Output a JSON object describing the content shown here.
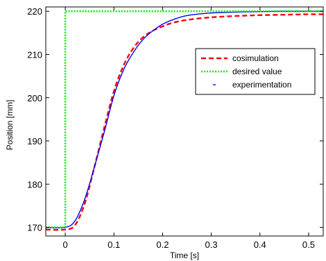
{
  "chart_data": {
    "type": "line",
    "title": "",
    "xlabel": "Time [s]",
    "ylabel": "Position [mm]",
    "xlim": [
      -0.04,
      0.53
    ],
    "ylim": [
      168,
      221
    ],
    "xticks": [
      0,
      0.1,
      0.2,
      0.3,
      0.4,
      0.5
    ],
    "xtick_labels": [
      "0",
      "0.1",
      "0.2",
      "0.3",
      "0.4",
      "0.5"
    ],
    "yticks": [
      170,
      180,
      190,
      200,
      210,
      220
    ],
    "ytick_labels": [
      "170",
      "180",
      "190",
      "200",
      "210",
      "220"
    ],
    "grid": false,
    "legend_position": "upper-right",
    "series": [
      {
        "name": "cosimulation",
        "color": "#ff0000",
        "style": "dashed",
        "x": [
          -0.04,
          0,
          0.02,
          0.04,
          0.06,
          0.08,
          0.1,
          0.12,
          0.14,
          0.16,
          0.18,
          0.2,
          0.22,
          0.25,
          0.3,
          0.35,
          0.4,
          0.45,
          0.5,
          0.53
        ],
        "y": [
          169.5,
          169.5,
          170.5,
          175.5,
          184,
          193,
          201.5,
          207.5,
          211.5,
          214,
          215.5,
          216.5,
          217.3,
          218,
          218.6,
          218.9,
          219.1,
          219.2,
          219.3,
          219.3
        ]
      },
      {
        "name": "desired value",
        "color": "#00ee00",
        "style": "dotted",
        "x": [
          -0.04,
          0,
          0,
          0.53
        ],
        "y": [
          170,
          170,
          220,
          220
        ]
      },
      {
        "name": "experimentation",
        "color": "#0000ff",
        "style": "solid",
        "x": [
          -0.04,
          0,
          0.02,
          0.04,
          0.06,
          0.08,
          0.1,
          0.12,
          0.14,
          0.16,
          0.18,
          0.2,
          0.22,
          0.25,
          0.3,
          0.35,
          0.4,
          0.45,
          0.5,
          0.53
        ],
        "y": [
          170,
          170,
          171.5,
          176.5,
          184,
          192,
          200.5,
          206.5,
          210.5,
          213.5,
          215.5,
          217,
          218,
          219,
          219.6,
          219.8,
          219.9,
          220,
          220,
          220
        ]
      }
    ]
  }
}
